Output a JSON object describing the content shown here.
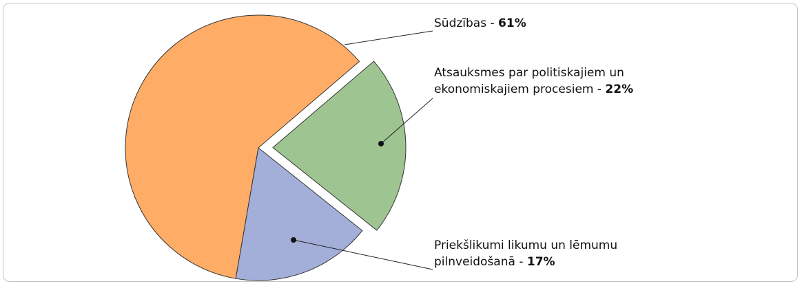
{
  "chart_data": {
    "type": "pie",
    "categories": [
      "Sūdzības",
      "Atsauksmes par politiskajiem un ekonomiskajiem procesiem",
      "Priekšlikumi likumu un lēmumu pilnveidošanā"
    ],
    "values": [
      61,
      22,
      17
    ],
    "value_labels": [
      "61%",
      "22%",
      "17%"
    ],
    "label_separator": " - ",
    "colors": [
      "#ffad66",
      "#9dc491",
      "#a3aed9"
    ],
    "exploded": [
      false,
      true,
      false
    ]
  }
}
